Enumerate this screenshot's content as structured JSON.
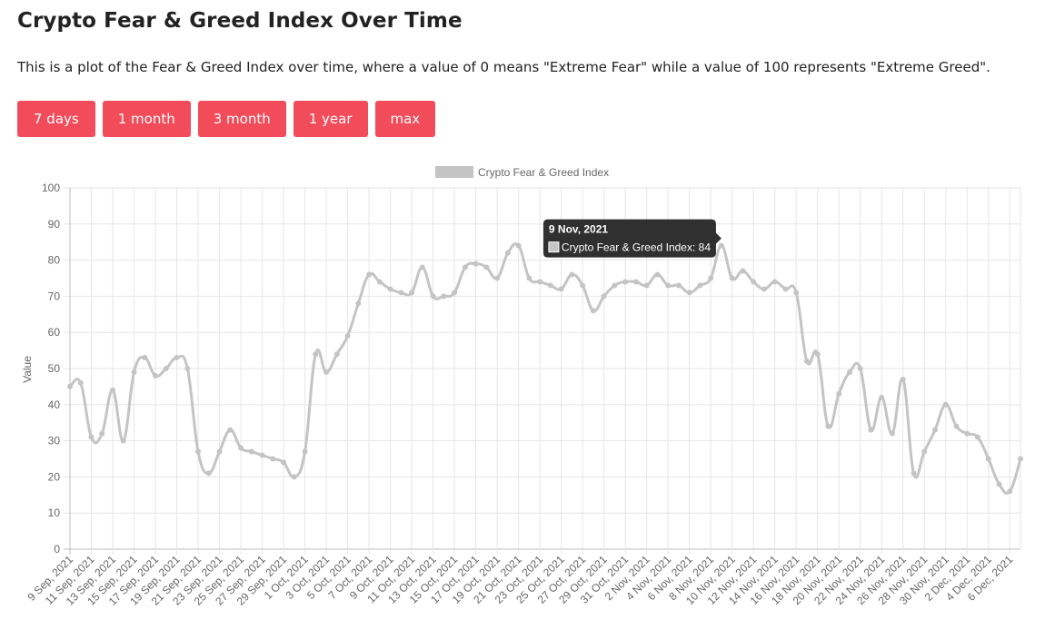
{
  "page": {
    "title": "Crypto Fear & Greed Index Over Time",
    "description": "This is a plot of the Fear & Greed Index over time, where a value of 0 means \"Extreme Fear\" while a value of 100 represents \"Extreme Greed\"."
  },
  "range_buttons": [
    "7 days",
    "1 month",
    "3 month",
    "1 year",
    "max"
  ],
  "colors": {
    "button_bg": "#f24b5a",
    "line": "#c4c4c4",
    "grid": "#e6e6e6",
    "tooltip_bg": "#1a1a1a"
  },
  "tooltip": {
    "title": "9 Nov, 2021",
    "series_label": "Crypto Fear & Greed Index",
    "value": 84,
    "text": "Crypto Fear & Greed Index: 84"
  },
  "chart_data": {
    "type": "line",
    "legend": "top-center",
    "grid": true,
    "xlabel": "",
    "ylabel": "Value",
    "ylim": [
      0,
      100
    ],
    "yticks": [
      0,
      10,
      20,
      30,
      40,
      50,
      60,
      70,
      80,
      90,
      100
    ],
    "series": [
      {
        "name": "Crypto Fear & Greed Index",
        "values": [
          45,
          46,
          31,
          32,
          44,
          30,
          49,
          53,
          48,
          50,
          53,
          50,
          27,
          21,
          27,
          33,
          28,
          27,
          26,
          25,
          24,
          20,
          27,
          54,
          49,
          54,
          59,
          68,
          76,
          74,
          72,
          71,
          71,
          78,
          70,
          70,
          71,
          78,
          79,
          78,
          75,
          82,
          84,
          75,
          74,
          73,
          72,
          76,
          73,
          66,
          70,
          73,
          74,
          74,
          73,
          76,
          73,
          73,
          71,
          73,
          75,
          84,
          75,
          77,
          74,
          72,
          74,
          72,
          71,
          52,
          54,
          34,
          43,
          49,
          50,
          33,
          42,
          32,
          47,
          21,
          27,
          33,
          40,
          34,
          32,
          31,
          25,
          18,
          16,
          25
        ]
      }
    ],
    "x_tick_labels": [
      "9 Sep, 2021",
      "11 Sep, 2021",
      "13 Sep, 2021",
      "15 Sep, 2021",
      "17 Sep, 2021",
      "19 Sep, 2021",
      "21 Sep, 2021",
      "23 Sep, 2021",
      "25 Sep, 2021",
      "27 Sep, 2021",
      "29 Sep, 2021",
      "1 Oct, 2021",
      "3 Oct, 2021",
      "5 Oct, 2021",
      "7 Oct, 2021",
      "9 Oct, 2021",
      "11 Oct, 2021",
      "13 Oct, 2021",
      "15 Oct, 2021",
      "17 Oct, 2021",
      "19 Oct, 2021",
      "21 Oct, 2021",
      "23 Oct, 2021",
      "25 Oct, 2021",
      "27 Oct, 2021",
      "29 Oct, 2021",
      "31 Oct, 2021",
      "2 Nov, 2021",
      "4 Nov, 2021",
      "6 Nov, 2021",
      "8 Nov, 2021",
      "10 Nov, 2021",
      "12 Nov, 2021",
      "14 Nov, 2021",
      "16 Nov, 2021",
      "18 Nov, 2021",
      "20 Nov, 2021",
      "22 Nov, 2021",
      "24 Nov, 2021",
      "26 Nov, 2021",
      "28 Nov, 2021",
      "30 Nov, 2021",
      "2 Dec, 2021",
      "4 Dec, 2021",
      "6 Dec, 2021"
    ],
    "highlight_label": "9 Nov, 2021"
  }
}
